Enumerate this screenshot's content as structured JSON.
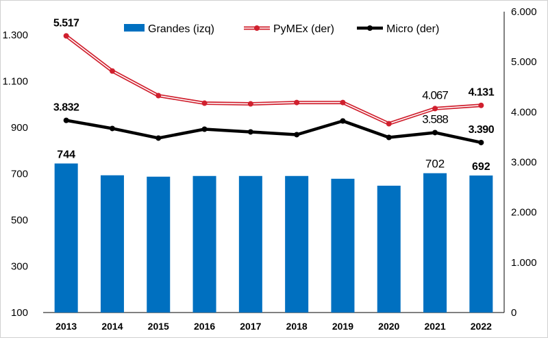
{
  "chart_data": {
    "type": "bar+line",
    "categories": [
      "2013",
      "2014",
      "2015",
      "2016",
      "2017",
      "2018",
      "2019",
      "2020",
      "2021",
      "2022"
    ],
    "left_axis": {
      "range": [
        100,
        1400
      ],
      "ticks": [
        100,
        300,
        500,
        700,
        900,
        1100,
        1300
      ],
      "tick_labels": [
        "100",
        "300",
        "500",
        "700",
        "900",
        "1.100",
        "1.300"
      ]
    },
    "right_axis": {
      "range": [
        0,
        6000
      ],
      "ticks": [
        0,
        1000,
        2000,
        3000,
        4000,
        5000,
        6000
      ],
      "tick_labels": [
        "0",
        "1.000",
        "2.000",
        "3.000",
        "4.000",
        "5.000",
        "6.000"
      ]
    },
    "series": [
      {
        "name": "Grandes (izq)",
        "kind": "bar",
        "axis": "left",
        "color": "#0070C0",
        "values": [
          744,
          693,
          687,
          690,
          690,
          690,
          678,
          648,
          702,
          692
        ],
        "labels": {
          "0": "744",
          "8": "702",
          "9": "692"
        },
        "bold_labels": [
          0,
          9
        ]
      },
      {
        "name": "PyMEx (der)",
        "kind": "line",
        "axis": "right",
        "color": "#D0202E",
        "values": [
          5517,
          4816,
          4325,
          4175,
          4161,
          4188,
          4188,
          3765,
          4067,
          4131
        ],
        "labels": {
          "0": "5.517",
          "8": "4.067",
          "9": "4.131"
        },
        "bold_labels": [
          0,
          9
        ]
      },
      {
        "name": "Micro (der)",
        "kind": "line",
        "axis": "right",
        "color": "#000000",
        "values": [
          3832,
          3670,
          3479,
          3656,
          3602,
          3547,
          3820,
          3492,
          3588,
          3390
        ],
        "labels": {
          "0": "3.832",
          "8": "3.588",
          "9": "3.390"
        },
        "bold_labels": [
          0,
          9
        ]
      }
    ],
    "legend": "top",
    "grid": false
  }
}
